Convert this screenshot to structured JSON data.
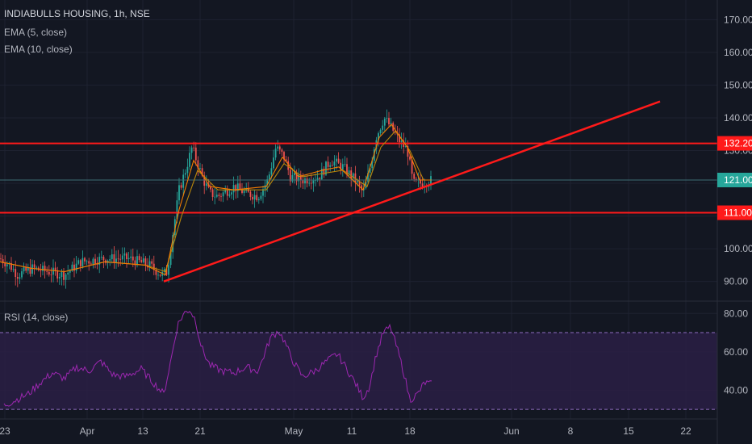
{
  "legend": {
    "title": "INDIABULLS HOUSING, 1h, NSE",
    "ema5": "EMA (5, close)",
    "ema10": "EMA (10, close)",
    "rsi": "RSI (14, close)"
  },
  "colors": {
    "background": "#131722",
    "grid": "#1e2230",
    "up": "#26a69a",
    "down": "#ef5350",
    "level_line": "#ff1a1a",
    "ema5": "#f57c00",
    "ema10": "#b8860b",
    "rsi": "#9c27b0",
    "rsi_band": "#2a1f44",
    "last_price": "#26a69a"
  },
  "chart_data": [
    {
      "type": "candlestick",
      "title": "INDIABULLS HOUSING, 1h, NSE",
      "ylim": [
        84,
        176
      ],
      "y_ticks": [
        90,
        100,
        110,
        120,
        130,
        140,
        150,
        160,
        170
      ],
      "y_tick_labels": [
        "90.00",
        "100.00",
        "110.00",
        "120.00",
        "130.00",
        "140.00",
        "150.00",
        "160.00",
        "170.00"
      ],
      "x_tick_labels": [
        "23",
        "Apr",
        "13",
        "21",
        "May",
        "11",
        "18",
        "Jun",
        "8",
        "15",
        "22"
      ],
      "price_path": [
        [
          0,
          97
        ],
        [
          12,
          95
        ],
        [
          22,
          92
        ],
        [
          40,
          94
        ],
        [
          60,
          93
        ],
        [
          80,
          92
        ],
        [
          100,
          96
        ],
        [
          130,
          97
        ],
        [
          160,
          97
        ],
        [
          185,
          95
        ],
        [
          200,
          92
        ],
        [
          207,
          93
        ],
        [
          215,
          106
        ],
        [
          222,
          118
        ],
        [
          230,
          124
        ],
        [
          238,
          131
        ],
        [
          245,
          126
        ],
        [
          252,
          121
        ],
        [
          260,
          117
        ],
        [
          270,
          116
        ],
        [
          290,
          119
        ],
        [
          305,
          117
        ],
        [
          320,
          116
        ],
        [
          332,
          121
        ],
        [
          342,
          131
        ],
        [
          352,
          128
        ],
        [
          360,
          122
        ],
        [
          375,
          121
        ],
        [
          395,
          122
        ],
        [
          410,
          127
        ],
        [
          425,
          125
        ],
        [
          440,
          121
        ],
        [
          450,
          117
        ],
        [
          458,
          124
        ],
        [
          466,
          134
        ],
        [
          476,
          140
        ],
        [
          485,
          137
        ],
        [
          495,
          133
        ],
        [
          505,
          130
        ],
        [
          512,
          120
        ],
        [
          522,
          120
        ],
        [
          535,
          121
        ]
      ],
      "ema_5_path": [
        [
          0,
          96
        ],
        [
          40,
          94
        ],
        [
          80,
          93
        ],
        [
          130,
          96
        ],
        [
          180,
          95
        ],
        [
          205,
          92
        ],
        [
          222,
          112
        ],
        [
          240,
          127
        ],
        [
          260,
          119
        ],
        [
          290,
          118
        ],
        [
          330,
          119
        ],
        [
          350,
          128
        ],
        [
          370,
          122
        ],
        [
          400,
          124
        ],
        [
          420,
          125
        ],
        [
          450,
          118
        ],
        [
          470,
          134
        ],
        [
          485,
          138
        ],
        [
          505,
          131
        ],
        [
          520,
          121
        ],
        [
          535,
          121
        ]
      ],
      "ema_10_path": [
        [
          0,
          96
        ],
        [
          40,
          94
        ],
        [
          80,
          93
        ],
        [
          130,
          96
        ],
        [
          180,
          95
        ],
        [
          205,
          93
        ],
        [
          225,
          110
        ],
        [
          245,
          124
        ],
        [
          270,
          118
        ],
        [
          300,
          118
        ],
        [
          330,
          118
        ],
        [
          352,
          126
        ],
        [
          375,
          122
        ],
        [
          400,
          123
        ],
        [
          425,
          124
        ],
        [
          455,
          119
        ],
        [
          472,
          131
        ],
        [
          490,
          136
        ],
        [
          508,
          130
        ],
        [
          525,
          121
        ],
        [
          535,
          121
        ]
      ],
      "horizontal_levels": [
        132.2,
        111.0
      ],
      "level_labels": [
        "132.20",
        "111.00"
      ],
      "trendline": [
        [
          203,
          90
        ],
        [
          818,
          145
        ]
      ],
      "last_price": 121.0,
      "last_price_label": "121.00"
    },
    {
      "type": "line",
      "title": "RSI (14, close)",
      "ylim": [
        25,
        86
      ],
      "y_ticks": [
        40,
        60,
        80
      ],
      "y_tick_labels": [
        "40.00",
        "60.00",
        "80.00"
      ],
      "band": [
        30,
        70
      ],
      "series": [
        {
          "values": [
            [
              5,
              32
            ],
            [
              20,
              35
            ],
            [
              35,
              38
            ],
            [
              50,
              44
            ],
            [
              65,
              49
            ],
            [
              80,
              46
            ],
            [
              95,
              52
            ],
            [
              110,
              50
            ],
            [
              125,
              55
            ],
            [
              140,
              48
            ],
            [
              155,
              47
            ],
            [
              175,
              51
            ],
            [
              190,
              44
            ],
            [
              203,
              38
            ],
            [
              212,
              56
            ],
            [
              220,
              74
            ],
            [
              228,
              80
            ],
            [
              235,
              82
            ],
            [
              242,
              77
            ],
            [
              250,
              62
            ],
            [
              260,
              53
            ],
            [
              275,
              50
            ],
            [
              290,
              49
            ],
            [
              305,
              52
            ],
            [
              320,
              50
            ],
            [
              335,
              67
            ],
            [
              345,
              71
            ],
            [
              352,
              66
            ],
            [
              362,
              56
            ],
            [
              375,
              47
            ],
            [
              390,
              50
            ],
            [
              405,
              55
            ],
            [
              418,
              59
            ],
            [
              430,
              51
            ],
            [
              440,
              44
            ],
            [
              450,
              36
            ],
            [
              458,
              42
            ],
            [
              466,
              58
            ],
            [
              475,
              70
            ],
            [
              484,
              73
            ],
            [
              492,
              62
            ],
            [
              500,
              50
            ],
            [
              508,
              35
            ],
            [
              518,
              38
            ],
            [
              526,
              44
            ],
            [
              535,
              43
            ]
          ]
        }
      ]
    }
  ]
}
